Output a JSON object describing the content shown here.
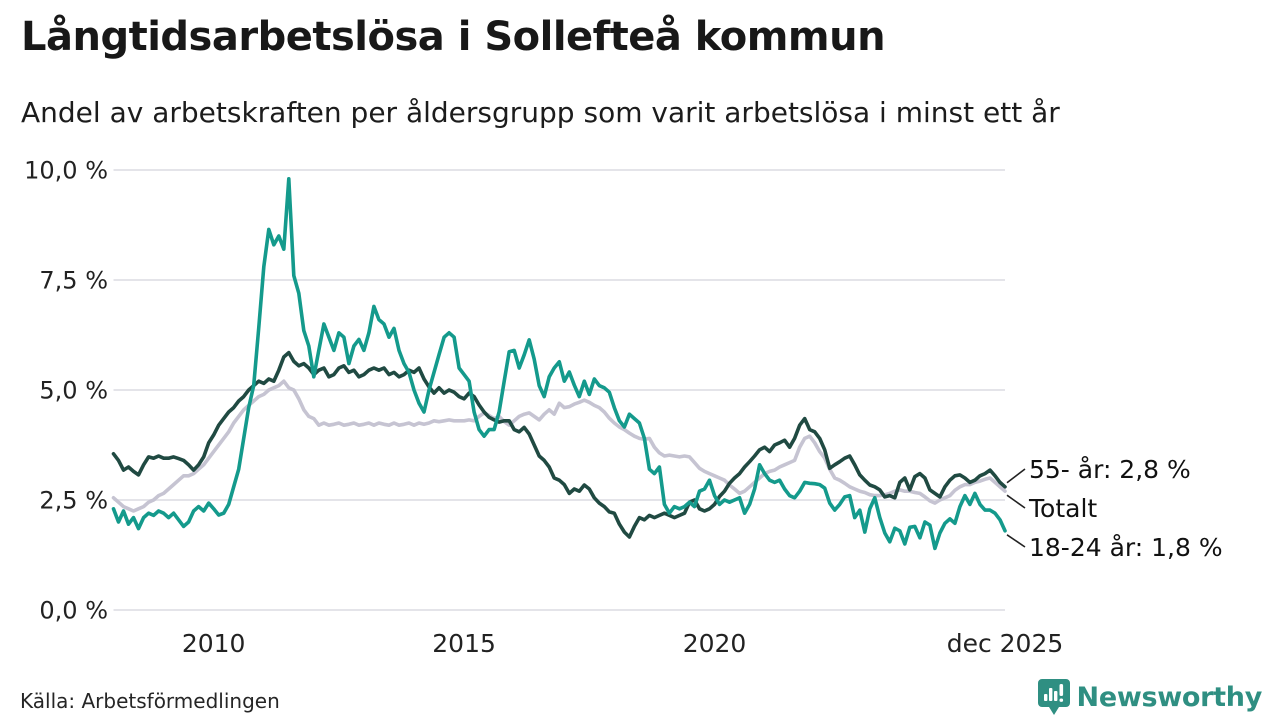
{
  "header": {
    "title": "Långtidsarbetslösa i Sollefteå kommun",
    "subtitle": "Andel av arbetskraften per åldersgrupp som varit arbetslösa i minst ett år"
  },
  "footer": {
    "source": "Källa: Arbetsförmedlingen",
    "brand_name": "Newsworthy",
    "brand_color": "#2f8f82"
  },
  "chart_data": {
    "type": "line",
    "title": "Långtidsarbetslösa i Sollefteå kommun",
    "subtitle": "Andel av arbetskraften per åldersgrupp som varit arbetslösa i minst ett år",
    "unit": "% av arbetskraften",
    "grid": true,
    "legend_position": "end-of-line labels",
    "x_start": 2008.0,
    "x_step": 0.1,
    "x_end": 2025.8,
    "ylim": [
      0,
      10
    ],
    "y_axis": {
      "ticks": [
        {
          "y": 0,
          "label": "0,0 %"
        },
        {
          "y": 2.5,
          "label": "2,5 %"
        },
        {
          "y": 5,
          "label": "5,0 %"
        },
        {
          "y": 7.5,
          "label": "7,5 %"
        },
        {
          "y": 10,
          "label": "10,0 %"
        }
      ]
    },
    "x_axis": {
      "ticks": [
        {
          "x": 2010,
          "label": "2010"
        },
        {
          "x": 2015,
          "label": "2015"
        },
        {
          "x": 2020,
          "label": "2020"
        },
        {
          "x": 2025.8,
          "label": "dec 2025"
        }
      ]
    },
    "series": [
      {
        "name": "Totalt",
        "color": "#c6c4d2",
        "end_label": "Totalt",
        "values": [
          2.55,
          2.45,
          2.35,
          2.3,
          2.25,
          2.3,
          2.35,
          2.45,
          2.5,
          2.6,
          2.65,
          2.75,
          2.85,
          2.95,
          3.05,
          3.05,
          3.1,
          3.2,
          3.3,
          3.45,
          3.6,
          3.75,
          3.9,
          4.05,
          4.25,
          4.4,
          4.55,
          4.65,
          4.75,
          4.85,
          4.9,
          5.0,
          5.05,
          5.1,
          5.2,
          5.05,
          5.0,
          4.8,
          4.55,
          4.4,
          4.35,
          4.2,
          4.25,
          4.2,
          4.22,
          4.25,
          4.2,
          4.22,
          4.25,
          4.2,
          4.22,
          4.25,
          4.2,
          4.25,
          4.22,
          4.2,
          4.25,
          4.2,
          4.22,
          4.25,
          4.2,
          4.25,
          4.22,
          4.25,
          4.3,
          4.28,
          4.3,
          4.32,
          4.3,
          4.3,
          4.3,
          4.32,
          4.3,
          4.4,
          4.48,
          4.42,
          4.35,
          4.4,
          4.28,
          4.2,
          4.3,
          4.4,
          4.45,
          4.48,
          4.4,
          4.32,
          4.45,
          4.55,
          4.45,
          4.7,
          4.6,
          4.62,
          4.68,
          4.72,
          4.77,
          4.72,
          4.65,
          4.6,
          4.5,
          4.36,
          4.25,
          4.16,
          4.1,
          4.02,
          3.95,
          3.9,
          3.88,
          3.9,
          3.7,
          3.57,
          3.5,
          3.52,
          3.5,
          3.48,
          3.5,
          3.48,
          3.35,
          3.22,
          3.15,
          3.1,
          3.05,
          3.0,
          2.95,
          2.84,
          2.75,
          2.65,
          2.7,
          2.8,
          2.9,
          3.0,
          3.1,
          3.15,
          3.18,
          3.25,
          3.3,
          3.35,
          3.4,
          3.7,
          3.9,
          3.95,
          3.8,
          3.6,
          3.45,
          3.2,
          3.0,
          2.95,
          2.88,
          2.8,
          2.75,
          2.7,
          2.67,
          2.62,
          2.6,
          2.6,
          2.62,
          2.65,
          2.7,
          2.73,
          2.7,
          2.7,
          2.67,
          2.65,
          2.57,
          2.48,
          2.43,
          2.5,
          2.55,
          2.6,
          2.72,
          2.8,
          2.85,
          2.85,
          2.9,
          2.93,
          2.97,
          3.0,
          2.9,
          2.8,
          2.7
        ]
      },
      {
        "name": "55- år",
        "color": "#204a42",
        "end_label": "55- år: 2,8 %",
        "end_value": "2,8 %",
        "values": [
          3.55,
          3.4,
          3.18,
          3.25,
          3.15,
          3.07,
          3.3,
          3.48,
          3.45,
          3.5,
          3.45,
          3.45,
          3.48,
          3.44,
          3.4,
          3.3,
          3.18,
          3.3,
          3.48,
          3.8,
          3.98,
          4.2,
          4.35,
          4.5,
          4.6,
          4.75,
          4.85,
          5.0,
          5.1,
          5.2,
          5.15,
          5.25,
          5.2,
          5.45,
          5.75,
          5.85,
          5.65,
          5.55,
          5.6,
          5.5,
          5.35,
          5.45,
          5.5,
          5.3,
          5.35,
          5.5,
          5.55,
          5.4,
          5.45,
          5.3,
          5.35,
          5.45,
          5.5,
          5.45,
          5.5,
          5.35,
          5.4,
          5.3,
          5.35,
          5.45,
          5.4,
          5.5,
          5.25,
          5.07,
          4.93,
          5.05,
          4.93,
          5.0,
          4.95,
          4.85,
          4.8,
          4.93,
          4.85,
          4.66,
          4.5,
          4.38,
          4.32,
          4.27,
          4.3,
          4.3,
          4.1,
          4.05,
          4.15,
          4.0,
          3.75,
          3.5,
          3.4,
          3.25,
          3.0,
          2.95,
          2.85,
          2.65,
          2.75,
          2.7,
          2.84,
          2.75,
          2.55,
          2.43,
          2.35,
          2.23,
          2.2,
          1.95,
          1.77,
          1.66,
          1.9,
          2.1,
          2.05,
          2.15,
          2.1,
          2.15,
          2.2,
          2.15,
          2.1,
          2.15,
          2.2,
          2.45,
          2.5,
          2.3,
          2.25,
          2.3,
          2.4,
          2.58,
          2.7,
          2.88,
          3.0,
          3.1,
          3.25,
          3.37,
          3.5,
          3.64,
          3.7,
          3.6,
          3.75,
          3.8,
          3.86,
          3.7,
          3.9,
          4.2,
          4.35,
          4.1,
          4.05,
          3.9,
          3.64,
          3.22,
          3.3,
          3.37,
          3.45,
          3.5,
          3.3,
          3.07,
          2.95,
          2.84,
          2.8,
          2.73,
          2.57,
          2.6,
          2.55,
          2.9,
          3.0,
          2.73,
          3.03,
          3.1,
          3.0,
          2.73,
          2.65,
          2.57,
          2.8,
          2.95,
          3.05,
          3.07,
          3.0,
          2.9,
          2.95,
          3.05,
          3.1,
          3.18,
          3.05,
          2.9,
          2.8
        ]
      },
      {
        "name": "18-24 år",
        "color": "#149a8c",
        "end_label": "18-24 år: 1,8 %",
        "end_value": "1,8 %",
        "values": [
          2.3,
          2.0,
          2.25,
          1.95,
          2.1,
          1.85,
          2.1,
          2.2,
          2.15,
          2.25,
          2.2,
          2.1,
          2.2,
          2.05,
          1.9,
          2.0,
          2.25,
          2.35,
          2.25,
          2.43,
          2.3,
          2.16,
          2.2,
          2.4,
          2.8,
          3.2,
          3.9,
          4.6,
          5.1,
          6.4,
          7.8,
          8.65,
          8.3,
          8.5,
          8.2,
          9.8,
          7.6,
          7.2,
          6.35,
          6.0,
          5.3,
          5.9,
          6.5,
          6.2,
          5.9,
          6.3,
          6.2,
          5.6,
          6.0,
          6.15,
          5.9,
          6.3,
          6.9,
          6.6,
          6.5,
          6.2,
          6.4,
          5.9,
          5.6,
          5.4,
          5.0,
          4.7,
          4.5,
          5.0,
          5.4,
          5.8,
          6.2,
          6.3,
          6.2,
          5.5,
          5.35,
          5.2,
          4.5,
          4.1,
          3.95,
          4.1,
          4.1,
          4.5,
          5.2,
          5.87,
          5.9,
          5.5,
          5.8,
          6.14,
          5.7,
          5.1,
          4.85,
          5.3,
          5.5,
          5.64,
          5.2,
          5.41,
          5.11,
          4.85,
          5.2,
          4.9,
          5.25,
          5.1,
          5.05,
          4.95,
          4.6,
          4.3,
          4.16,
          4.45,
          4.35,
          4.25,
          3.9,
          3.2,
          3.1,
          3.25,
          2.4,
          2.2,
          2.35,
          2.3,
          2.35,
          2.45,
          2.35,
          2.7,
          2.75,
          2.95,
          2.6,
          2.4,
          2.5,
          2.45,
          2.5,
          2.55,
          2.2,
          2.4,
          2.75,
          3.3,
          3.1,
          2.95,
          2.9,
          2.95,
          2.75,
          2.6,
          2.55,
          2.7,
          2.9,
          2.88,
          2.87,
          2.85,
          2.77,
          2.43,
          2.27,
          2.4,
          2.57,
          2.6,
          2.1,
          2.27,
          1.77,
          2.3,
          2.55,
          2.1,
          1.75,
          1.55,
          1.86,
          1.8,
          1.5,
          1.88,
          1.9,
          1.64,
          2.0,
          1.93,
          1.4,
          1.75,
          1.97,
          2.07,
          1.97,
          2.35,
          2.6,
          2.4,
          2.65,
          2.4,
          2.27,
          2.27,
          2.2,
          2.05,
          1.8
        ]
      }
    ],
    "annotations": [
      {
        "text": "55- år: 2,8 %",
        "series": "55- år"
      },
      {
        "text": "Totalt",
        "series": "Totalt"
      },
      {
        "text": "18-24 år: 1,8 %",
        "series": "18-24 år"
      }
    ]
  }
}
